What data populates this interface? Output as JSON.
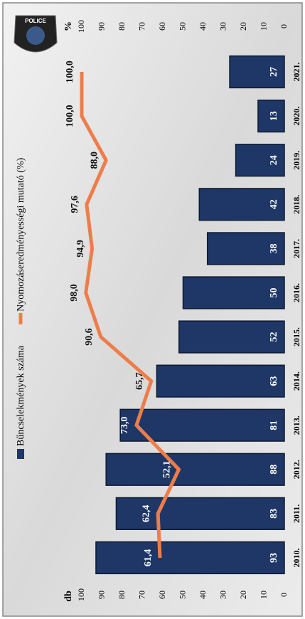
{
  "logo": {
    "text": "POLICE"
  },
  "chart_data": {
    "type": "bar",
    "categories": [
      "2010.",
      "2011.",
      "2012.",
      "2013.",
      "2014.",
      "2015.",
      "2016.",
      "2017.",
      "2018.",
      "2019.",
      "2020.",
      "2021."
    ],
    "y_label": "db",
    "y2_label": "%",
    "ylim": [
      0,
      100
    ],
    "yticks": [
      0,
      10,
      20,
      30,
      40,
      50,
      60,
      70,
      80,
      90,
      100
    ],
    "y2lim": [
      0,
      100
    ],
    "y2ticks": [
      0,
      10,
      20,
      30,
      40,
      50,
      60,
      70,
      80,
      90,
      100
    ],
    "grid": false,
    "series": [
      {
        "name": "Bűncselekmények száma",
        "type": "bar",
        "color": "#1f3766",
        "values": [
          93,
          83,
          88,
          81,
          63,
          52,
          50,
          38,
          42,
          24,
          13,
          27
        ]
      },
      {
        "name": "Nyomozáseredményességi mutató (%)",
        "type": "line",
        "axis": "y2",
        "color": "#ee7d4a",
        "values": [
          61.4,
          62.4,
          52.1,
          73.0,
          65.7,
          90.6,
          98.0,
          94.9,
          97.6,
          88.0,
          100.0,
          100.0
        ],
        "value_labels": [
          "61,4",
          "62,4",
          "52,1",
          "73,0",
          "65,7",
          "90,6",
          "98,0",
          "94,9",
          "97,6",
          "88,0",
          "100,0",
          "100,0"
        ]
      }
    ]
  }
}
